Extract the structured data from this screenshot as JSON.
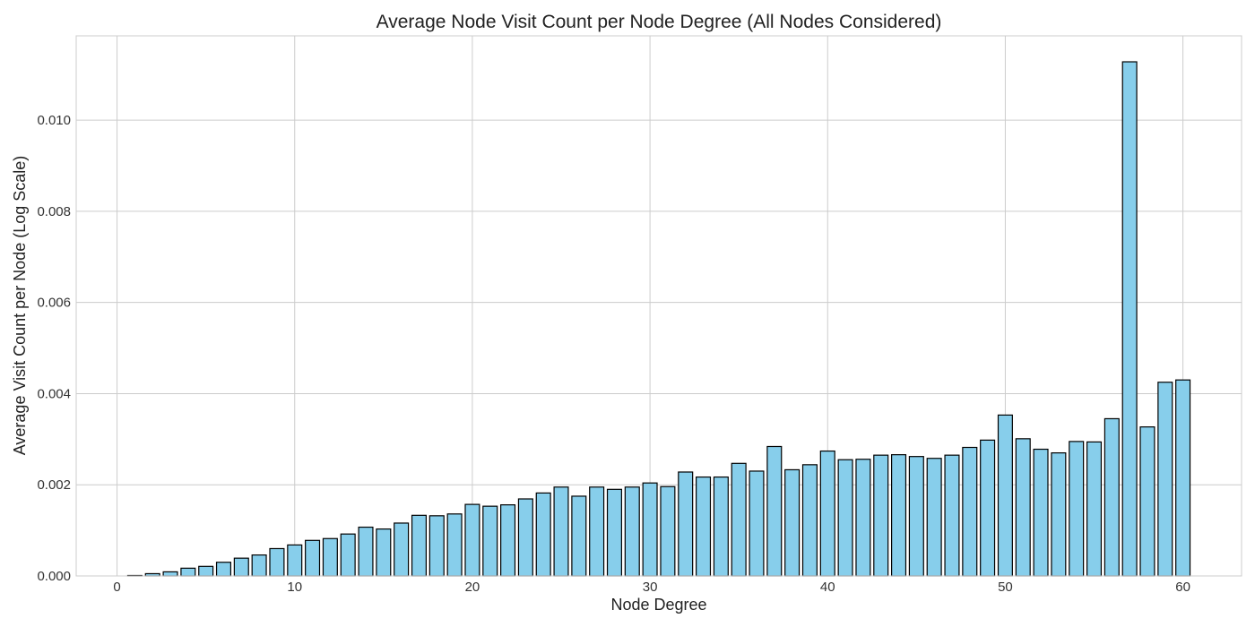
{
  "chart_data": {
    "type": "bar",
    "title": "Average Node Visit Count per Node Degree (All Nodes Considered)",
    "xlabel": "Node Degree",
    "ylabel": "Average Visit Count per Node (Log Scale)",
    "xlim": [
      -2.3,
      63.3
    ],
    "ylim": [
      0,
      0.01185
    ],
    "x_ticks": [
      0,
      10,
      20,
      30,
      40,
      50,
      60
    ],
    "x_tick_labels": [
      "0",
      "10",
      "20",
      "30",
      "40",
      "50",
      "60"
    ],
    "y_ticks": [
      0,
      0.002,
      0.004,
      0.006,
      0.008,
      0.01
    ],
    "y_tick_labels": [
      "0.000",
      "0.002",
      "0.004",
      "0.006",
      "0.008",
      "0.010"
    ],
    "grid": true,
    "bar_color": "#87CEEB",
    "edge_color": "#000000",
    "grid_color": "#cccccc",
    "x": [
      1,
      2,
      3,
      4,
      5,
      6,
      7,
      8,
      9,
      10,
      11,
      12,
      13,
      14,
      15,
      16,
      17,
      18,
      19,
      20,
      21,
      22,
      23,
      24,
      25,
      26,
      27,
      28,
      29,
      30,
      31,
      32,
      33,
      34,
      35,
      36,
      37,
      38,
      39,
      40,
      41,
      42,
      43,
      44,
      45,
      46,
      47,
      48,
      49,
      50,
      51,
      52,
      53,
      54,
      55,
      56,
      57,
      58,
      59,
      60
    ],
    "values": [
      1e-05,
      5e-05,
      9e-05,
      0.00017,
      0.00021,
      0.0003,
      0.00039,
      0.00046,
      0.0006,
      0.00068,
      0.00078,
      0.00082,
      0.00092,
      0.00107,
      0.00103,
      0.00116,
      0.00133,
      0.00132,
      0.00136,
      0.00157,
      0.00153,
      0.00156,
      0.00169,
      0.00182,
      0.00195,
      0.00175,
      0.00195,
      0.0019,
      0.00195,
      0.00204,
      0.00196,
      0.00228,
      0.00217,
      0.00217,
      0.00247,
      0.0023,
      0.00284,
      0.00233,
      0.00244,
      0.00274,
      0.00255,
      0.00256,
      0.00265,
      0.00266,
      0.00262,
      0.00258,
      0.00265,
      0.00282,
      0.00298,
      0.00353,
      0.00301,
      0.00278,
      0.0027,
      0.00295,
      0.00294,
      0.00345,
      0.01128,
      0.00327,
      0.00425,
      0.0043
    ]
  }
}
